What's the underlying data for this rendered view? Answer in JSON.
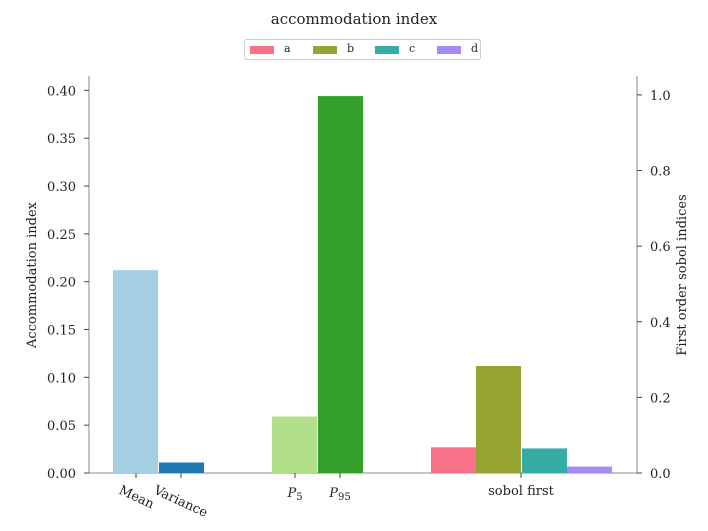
{
  "chart_data": {
    "type": "bar",
    "title": "accommodation index",
    "ylabel": "Accommodation index",
    "ylabel_right": "First order sobol indices",
    "ylim": [
      0,
      0.415
    ],
    "ylim_right": [
      0,
      1.05
    ],
    "yticks": [
      "0.00",
      "0.05",
      "0.10",
      "0.15",
      "0.20",
      "0.25",
      "0.30",
      "0.35",
      "0.40"
    ],
    "yticks_right": [
      "0.0",
      "0.2",
      "0.4",
      "0.6",
      "0.8",
      "1.0"
    ],
    "categories": [
      "Mean",
      "Variance",
      "P5",
      "P95",
      "sobol first"
    ],
    "bars": [
      {
        "label": "Mean",
        "value": 0.212,
        "axis": "left",
        "color": "#a6cee3"
      },
      {
        "label": "Variance",
        "value": 0.011,
        "axis": "left",
        "color": "#1f78b4"
      },
      {
        "label": "P5",
        "value": 0.059,
        "axis": "left",
        "color": "#b2df8a"
      },
      {
        "label": "P95",
        "value": 0.394,
        "axis": "left",
        "color": "#33a02c"
      }
    ],
    "sobol_series": [
      {
        "name": "a",
        "value": 0.068,
        "color": "#f7718a"
      },
      {
        "name": "b",
        "value": 0.283,
        "color": "#97a431"
      },
      {
        "name": "c",
        "value": 0.065,
        "color": "#36ada4"
      },
      {
        "name": "d",
        "value": 0.017,
        "color": "#a48cf4"
      }
    ],
    "legend": {
      "placement": "top-center"
    },
    "grid": false
  }
}
